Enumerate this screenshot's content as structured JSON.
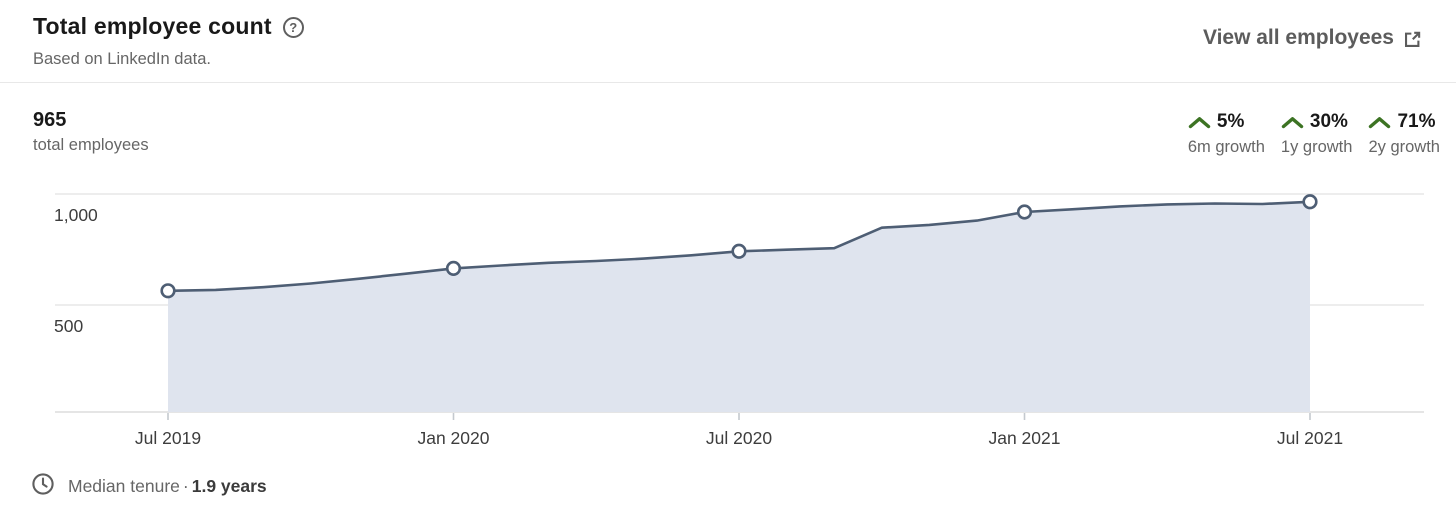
{
  "header": {
    "title": "Total employee count",
    "subtitle": "Based on LinkedIn data.",
    "view_all_label": "View all employees"
  },
  "icons": {
    "help_glyph": "?"
  },
  "summary": {
    "value": "965",
    "label": "total employees"
  },
  "growth_stats": [
    {
      "percent": "5%",
      "label": "6m growth"
    },
    {
      "percent": "30%",
      "label": "1y growth"
    },
    {
      "percent": "71%",
      "label": "2y growth"
    }
  ],
  "footer": {
    "label": "Median tenure",
    "separator": "·",
    "value": "1.9 years"
  },
  "colors": {
    "line": "#4e5e74",
    "fill": "#dfe4ee",
    "grid": "#e2e2e2",
    "axis": "#d5d5d5",
    "tick": "#c4c9cf",
    "axis_label": "#3d3d3d",
    "growth_green": "#3c7323"
  },
  "chart_data": {
    "type": "area",
    "title": "Total employee count",
    "x": [
      "Jul 2019",
      "Aug 2019",
      "Sep 2019",
      "Oct 2019",
      "Nov 2019",
      "Dec 2019",
      "Jan 2020",
      "Feb 2020",
      "Mar 2020",
      "Apr 2020",
      "May 2020",
      "Jun 2020",
      "Jul 2020",
      "Aug 2020",
      "Sep 2020",
      "Oct 2020",
      "Nov 2020",
      "Dec 2020",
      "Jan 2021",
      "Feb 2021",
      "Mar 2021",
      "Apr 2021",
      "May 2021",
      "Jun 2021",
      "Jul 2021"
    ],
    "values": [
      564,
      568,
      580,
      597,
      618,
      641,
      665,
      678,
      690,
      698,
      709,
      724,
      742,
      749,
      756,
      848,
      861,
      880,
      919,
      931,
      944,
      953,
      957,
      955,
      965
    ],
    "x_tick_labels": [
      "Jul 2019",
      "Jan 2020",
      "Jul 2020",
      "Jan 2021",
      "Jul 2021"
    ],
    "marker_indices": [
      0,
      6,
      12,
      18,
      24
    ],
    "y_ticks": [
      {
        "value": 500,
        "label": "500"
      },
      {
        "value": 1000,
        "label": "1,000"
      }
    ],
    "ylim": [
      0,
      1080
    ],
    "grid": "horizontal",
    "legend": "none"
  }
}
